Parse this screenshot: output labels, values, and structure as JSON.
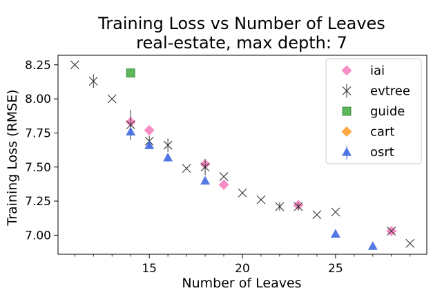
{
  "chart_data": {
    "type": "scatter",
    "title": "Training Loss vs Number of Leaves",
    "subtitle": "real-estate, max depth: 7",
    "xlabel": "Number of Leaves",
    "ylabel": "Training Loss (RMSE)",
    "xlim": [
      10.1,
      29.9
    ],
    "ylim": [
      6.86,
      8.32
    ],
    "x_ticks": [
      15,
      20,
      25
    ],
    "x_minor_ticks": [
      11,
      12,
      13,
      14,
      16,
      17,
      18,
      19,
      21,
      22,
      23,
      24,
      26,
      27,
      28,
      29
    ],
    "y_ticks": [
      7.0,
      7.25,
      7.5,
      7.75,
      8.0,
      8.25
    ],
    "y_tick_labels": [
      "7.00",
      "7.25",
      "7.50",
      "7.75",
      "8.00",
      "8.25"
    ],
    "grid": false,
    "legend_position": "top-right",
    "series": [
      {
        "name": "iai",
        "marker": "diamond",
        "color": "#f781bf",
        "points": [
          {
            "x": 14,
            "y": 7.83
          },
          {
            "x": 15,
            "y": 7.77
          },
          {
            "x": 18,
            "y": 7.52
          },
          {
            "x": 19,
            "y": 7.37
          },
          {
            "x": 23,
            "y": 7.22
          },
          {
            "x": 28,
            "y": 7.03
          }
        ]
      },
      {
        "name": "evtree",
        "marker": "x",
        "color": "#333333",
        "points": [
          {
            "x": 11,
            "y": 8.25,
            "err": 0
          },
          {
            "x": 12,
            "y": 8.13,
            "err": 0.05
          },
          {
            "x": 13,
            "y": 8.0,
            "err": 0
          },
          {
            "x": 14,
            "y": 7.81,
            "err": 0.11
          },
          {
            "x": 15,
            "y": 7.69,
            "err": 0.04
          },
          {
            "x": 16,
            "y": 7.66,
            "err": 0.05
          },
          {
            "x": 17,
            "y": 7.49,
            "err": 0
          },
          {
            "x": 18,
            "y": 7.5,
            "err": 0.06
          },
          {
            "x": 19,
            "y": 7.43,
            "err": 0
          },
          {
            "x": 20,
            "y": 7.31,
            "err": 0
          },
          {
            "x": 21,
            "y": 7.26,
            "err": 0
          },
          {
            "x": 22,
            "y": 7.21,
            "err": 0.03
          },
          {
            "x": 23,
            "y": 7.21,
            "err": 0.03
          },
          {
            "x": 24,
            "y": 7.15,
            "err": 0
          },
          {
            "x": 25,
            "y": 7.17,
            "err": 0
          },
          {
            "x": 28,
            "y": 7.03,
            "err": 0
          },
          {
            "x": 29,
            "y": 6.94,
            "err": 0
          }
        ]
      },
      {
        "name": "guide",
        "marker": "square",
        "color": "#4daf4a",
        "points": [
          {
            "x": 14,
            "y": 8.19
          }
        ]
      },
      {
        "name": "cart",
        "marker": "diamond",
        "color": "#ff9d2e",
        "points": []
      },
      {
        "name": "osrt",
        "marker": "triangle",
        "color": "#4169e1",
        "points": [
          {
            "x": 14,
            "y": 7.76,
            "err": 0.02
          },
          {
            "x": 15,
            "y": 7.66,
            "err": 0.02
          },
          {
            "x": 16,
            "y": 7.57,
            "err": 0.03
          },
          {
            "x": 18,
            "y": 7.4,
            "err": 0
          },
          {
            "x": 25,
            "y": 7.01,
            "err": 0
          },
          {
            "x": 27,
            "y": 6.92,
            "err": 0
          }
        ]
      }
    ]
  }
}
